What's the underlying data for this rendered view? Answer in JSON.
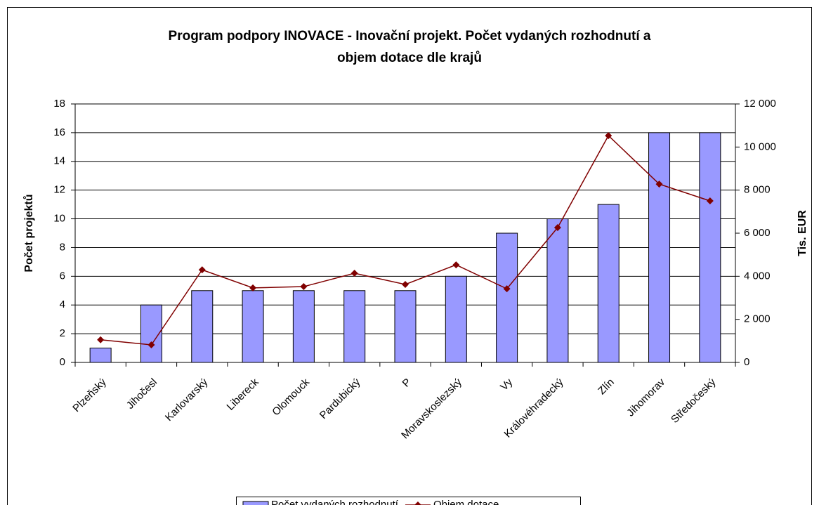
{
  "chart_data": {
    "type": "bar_line",
    "title": [
      "Program podpory INOVACE - Inovační projekt. Počet vydaných rozhodnutí a",
      "objem dotace dle krajů"
    ],
    "y_label": "Počet projektů",
    "y2_label": "Tis. EUR",
    "categories": [
      "Plzeňský",
      "Jihočesl",
      "Karlovarský",
      "Libereck",
      "Olomouck",
      "Pardubický",
      "P",
      "Moravskoslezský",
      "Vy",
      "Královéhradecký",
      "Zlín",
      "Jihomorav",
      "Středočeský"
    ],
    "series": [
      {
        "name": "Počet vydaných rozhodnutí",
        "type": "bar",
        "color": "#9999ff",
        "values": [
          1,
          4,
          5,
          5,
          5,
          5,
          5,
          6,
          9,
          10,
          11,
          16,
          16
        ]
      },
      {
        "name": "Objem dotace",
        "type": "line",
        "axis": "y2",
        "color": "#800000",
        "values": [
          1050,
          815,
          4300,
          3460,
          3520,
          4140,
          3620,
          4530,
          3420,
          6260,
          10530,
          8280,
          7500
        ]
      }
    ],
    "ylim": [
      0,
      18
    ],
    "yticks": [
      0,
      2,
      4,
      6,
      8,
      10,
      12,
      14,
      16,
      18
    ],
    "y2lim": [
      0,
      12000
    ],
    "y2ticks": [
      0,
      {
        "value": 2000,
        "label": "2 000"
      },
      {
        "value": 4000,
        "label": "4 000"
      },
      {
        "value": 6000,
        "label": "6 000"
      },
      {
        "value": 8000,
        "label": "8 000"
      },
      {
        "value": 10000,
        "label": "10 000"
      },
      {
        "value": 12000,
        "label": "12 000"
      }
    ],
    "grid": true,
    "legend": "bottom"
  }
}
